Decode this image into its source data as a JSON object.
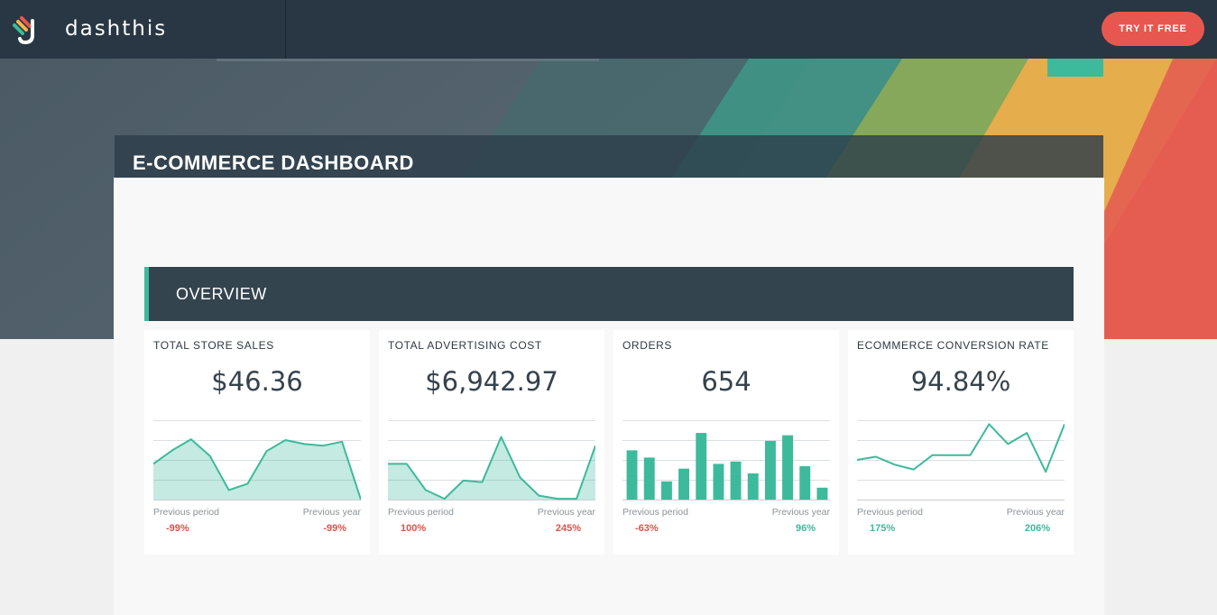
{
  "topbar": {
    "brand": "dashthis",
    "cta_label": "TRY IT FREE"
  },
  "dashboard": {
    "title": "E-COMMERCE DASHBOARD",
    "section_title": "OVERVIEW"
  },
  "colors": {
    "accent": "#3dba9b",
    "negative": "#e05249",
    "cta": "#e8574f",
    "topbar": "#283743"
  },
  "cards": [
    {
      "title": "TOTAL STORE SALES",
      "value": "$46.36",
      "previous_period_label": "Previous period",
      "previous_period_value": "-99%",
      "previous_period_trend": "negative",
      "previous_year_label": "Previous year",
      "previous_year_value": "-99%",
      "previous_year_trend": "negative"
    },
    {
      "title": "TOTAL ADVERTISING COST",
      "value": "$6,942.97",
      "previous_period_label": "Previous period",
      "previous_period_value": "100%",
      "previous_period_trend": "negative",
      "previous_year_label": "Previous year",
      "previous_year_value": "245%",
      "previous_year_trend": "negative"
    },
    {
      "title": "ORDERS",
      "value": "654",
      "previous_period_label": "Previous period",
      "previous_period_value": "-63%",
      "previous_period_trend": "negative",
      "previous_year_label": "Previous year",
      "previous_year_value": "96%",
      "previous_year_trend": "positive"
    },
    {
      "title": "ECOMMERCE CONVERSION RATE",
      "value": "94.84%",
      "previous_period_label": "Previous period",
      "previous_period_value": "175%",
      "previous_period_trend": "positive",
      "previous_year_label": "Previous year",
      "previous_year_value": "206%",
      "previous_year_trend": "positive"
    }
  ],
  "chart_data": [
    {
      "type": "area",
      "name": "total-store-sales-sparkline",
      "values": [
        45,
        62,
        76,
        55,
        12,
        20,
        61,
        75,
        70,
        68,
        73,
        0
      ],
      "ylim": [
        0,
        100
      ],
      "grid": true
    },
    {
      "type": "area",
      "name": "total-advertising-cost-sparkline",
      "values": [
        45,
        45,
        12,
        1,
        24,
        22,
        79,
        28,
        5,
        1,
        1,
        68
      ],
      "ylim": [
        0,
        100
      ],
      "grid": true
    },
    {
      "type": "bar",
      "name": "orders-sparkline",
      "values": [
        62,
        53,
        23,
        39,
        84,
        45,
        48,
        33,
        74,
        81,
        42,
        15
      ],
      "ylim": [
        0,
        100
      ],
      "grid": true
    },
    {
      "type": "line",
      "name": "ecommerce-conversion-rate-sparkline",
      "values": [
        50,
        54,
        44,
        38,
        56,
        56,
        56,
        95,
        70,
        84,
        35,
        95
      ],
      "ylim": [
        0,
        100
      ],
      "grid": true
    }
  ]
}
